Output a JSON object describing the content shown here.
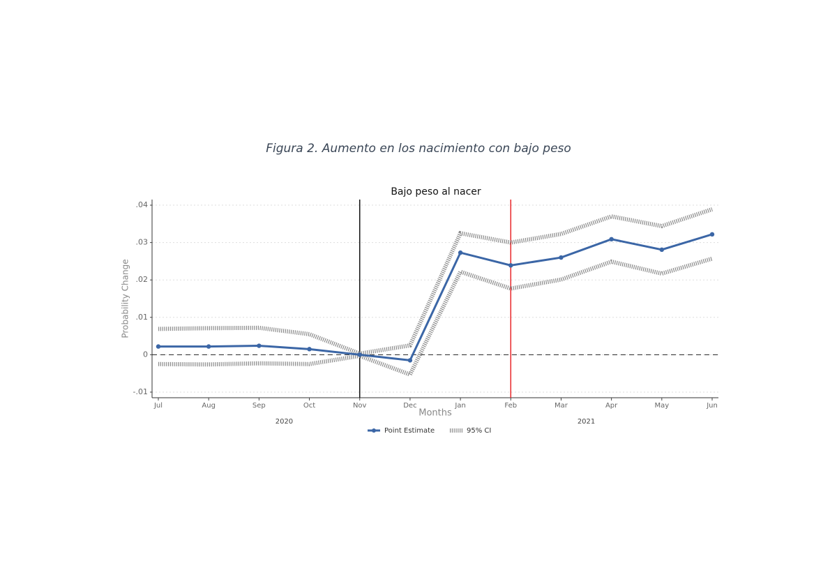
{
  "chart_data": {
    "type": "line",
    "figure_title": "Figura 2. Aumento en los nacimiento con bajo peso",
    "title": "Bajo peso al nacer",
    "x_label": "Months",
    "y_label": "Probability Change",
    "categories": [
      "Jul",
      "Aug",
      "Sep",
      "Oct",
      "Nov",
      "Dec",
      "Jan",
      "Feb",
      "Mar",
      "Apr",
      "May",
      "Jun"
    ],
    "year_labels": [
      "2020",
      "2021"
    ],
    "series": [
      {
        "name": "Point Estimate",
        "color": "#3b66a6",
        "values": [
          0.0022,
          0.0022,
          0.0024,
          0.0015,
          0.0,
          -0.0015,
          0.0273,
          0.0239,
          0.026,
          0.0309,
          0.0281,
          0.0322
        ]
      },
      {
        "name": "95% CI",
        "color": "#8a8a8a",
        "upper": [
          0.0069,
          0.0071,
          0.0072,
          0.0055,
          0.0003,
          0.0025,
          0.0325,
          0.03,
          0.0323,
          0.037,
          0.0344,
          0.0389
        ],
        "lower": [
          -0.0025,
          -0.0026,
          -0.0023,
          -0.0025,
          -0.0003,
          -0.0053,
          0.0222,
          0.0177,
          0.0201,
          0.0249,
          0.0217,
          0.0257
        ]
      }
    ],
    "vlines": [
      {
        "category": "Nov",
        "color": "#111111"
      },
      {
        "category": "Feb",
        "color": "#e8262a"
      }
    ],
    "hline": 0,
    "ylim": [
      -0.0115,
      0.0415
    ],
    "yticks": [
      {
        "value": -0.01,
        "label": "-.01"
      },
      0,
      {
        "value": 0.01,
        "label": ".01"
      },
      {
        "value": 0.02,
        "label": ".02"
      },
      {
        "value": 0.03,
        "label": ".03"
      },
      {
        "value": 0.04,
        "label": ".04"
      }
    ],
    "grid": true
  }
}
